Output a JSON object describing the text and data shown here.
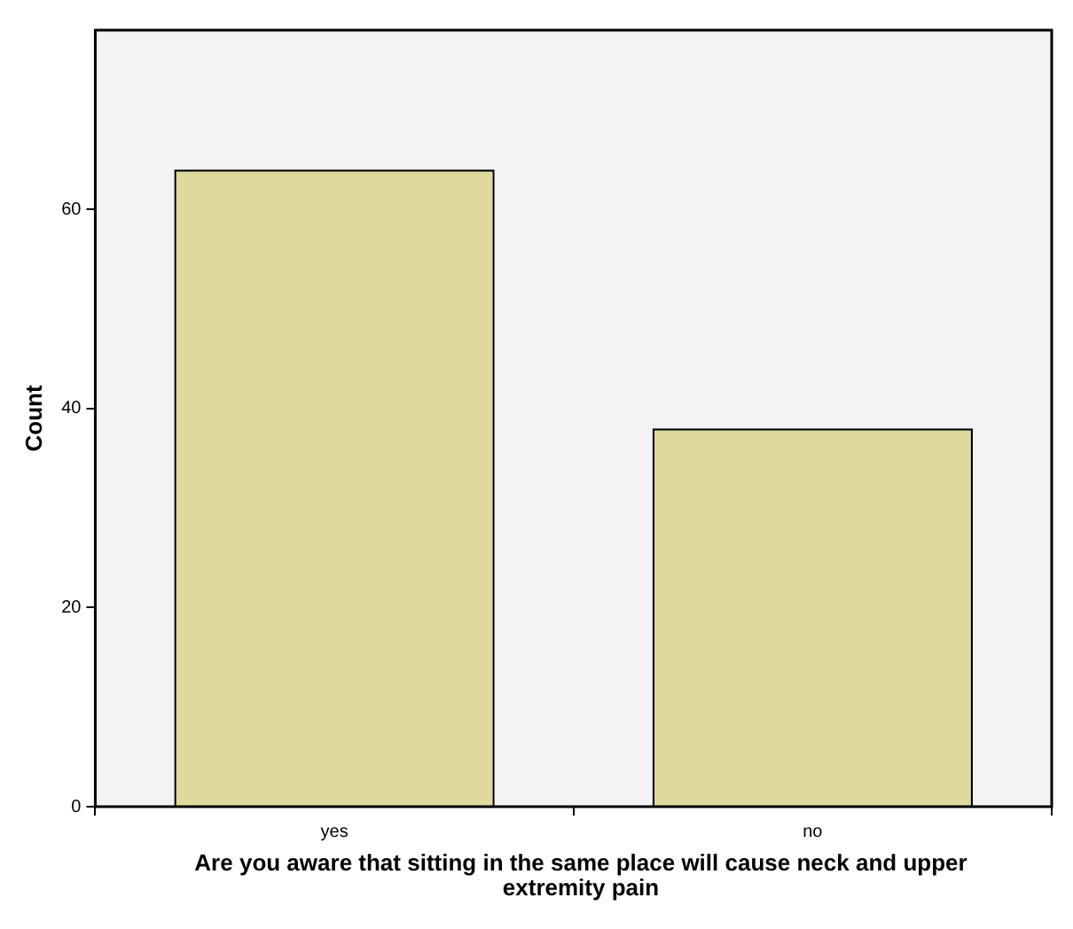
{
  "chart_data": {
    "type": "bar",
    "xlabel": "Are you aware that sitting in the same place will cause neck and upper extremity pain",
    "ylabel": "Count",
    "categories": [
      "yes",
      "no"
    ],
    "values": [
      64,
      38
    ],
    "color": "#dfd99c",
    "ylim": [
      0,
      78
    ],
    "yticks": [
      0,
      20,
      40,
      60
    ]
  }
}
